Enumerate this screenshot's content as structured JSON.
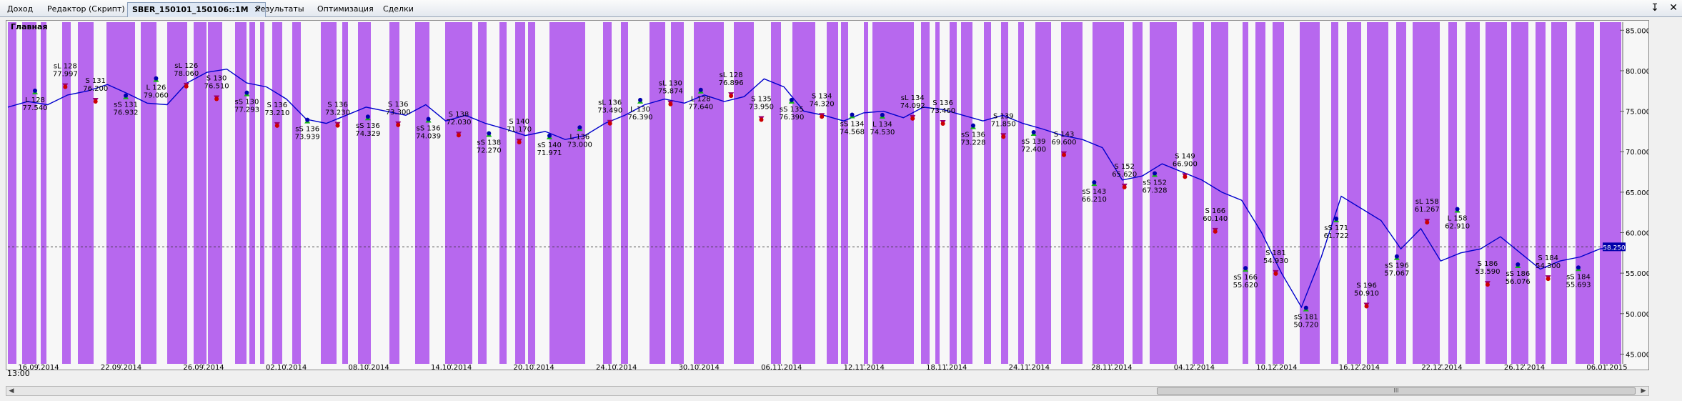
{
  "tabs": [
    {
      "label": "Доход",
      "active": false
    },
    {
      "label": "Редактор (Скрипт)",
      "active": false
    },
    {
      "label": "SBER_150101_150106::1M",
      "active": true
    },
    {
      "label": "Результаты",
      "active": false
    },
    {
      "label": "Оптимизация",
      "active": false
    },
    {
      "label": "Сделки",
      "active": false
    }
  ],
  "window_controls": {
    "pin": "↧",
    "close": "✕"
  },
  "panel_title": "Главная",
  "time_label": "13:00",
  "scrollbar": {
    "left": "◀",
    "right": "▶",
    "grip": "III"
  },
  "icons": [
    "close-icon",
    "pin-icon",
    "arrow-left-icon",
    "arrow-right-icon"
  ],
  "colors": {
    "band": "#b768ee",
    "price_line": "#0000cc",
    "trade_line": "#c80000",
    "buy_marker": "#19b419",
    "sell_marker": "#9a0070",
    "last_price_box": "#0000aa"
  },
  "chart_data": {
    "type": "line",
    "ylim": [
      43.8,
      86.0
    ],
    "yticks": [
      "85.000",
      "80.000",
      "75.000",
      "70.000",
      "65.000",
      "60.000",
      "55.000",
      "50.000",
      "45.000"
    ],
    "x_labels": [
      "16.09.2014",
      "22.09.2014",
      "26.09.2014",
      "02.10.2014",
      "08.10.2014",
      "14.10.2014",
      "20.10.2014",
      "24.10.2014",
      "30.10.2014",
      "06.11.2014",
      "12.11.2014",
      "18.11.2014",
      "24.11.2014",
      "28.11.2014",
      "04.12.2014",
      "10.12.2014",
      "16.12.2014",
      "22.12.2014",
      "26.12.2014",
      "06.01.2015"
    ],
    "last_price": "58.250",
    "series": [
      {
        "values": [
          75.5,
          76.2,
          75.8,
          77.0,
          77.5,
          78.3,
          77.2,
          76.0,
          75.8,
          78.5,
          79.8,
          80.2,
          78.5,
          78.0,
          76.5,
          74.0,
          73.5,
          74.5,
          75.5,
          75.0,
          74.5,
          75.8,
          73.8,
          74.5,
          73.5,
          72.8,
          72.0,
          72.5,
          71.5,
          72.0,
          73.5,
          74.5,
          75.8,
          76.5,
          76.0,
          77.0,
          76.2,
          76.8,
          79.0,
          78.0,
          75.0,
          74.5,
          73.8,
          74.8,
          75.0,
          74.2,
          75.5,
          75.2,
          74.5,
          73.8,
          74.5,
          73.5,
          72.8,
          72.0,
          71.5,
          70.5,
          66.5,
          67.0,
          68.5,
          67.5,
          66.5,
          65.0,
          64.0,
          60.0,
          55.0,
          50.8,
          57.0,
          64.5,
          63.0,
          61.5,
          58.0,
          60.5,
          56.5,
          57.5,
          58.0,
          59.5,
          57.5,
          55.5,
          56.5,
          57.0,
          58.0,
          58.25
        ]
      }
    ],
    "trades": [
      {
        "id": "L 128",
        "text": "L 128\n77.540",
        "dir": "buy",
        "pos": "below",
        "price": 77.54
      },
      {
        "id": "sL 128",
        "text": "sL 128\n77.997",
        "dir": "sell",
        "pos": "above",
        "price": 77.997
      },
      {
        "id": "S 131",
        "text": "S 131\n76.200",
        "dir": "sell",
        "pos": "above",
        "price": 76.2
      },
      {
        "id": "sS 131",
        "text": "sS 131\n76.932",
        "dir": "buy",
        "pos": "below",
        "price": 76.932
      },
      {
        "id": "L 126",
        "text": "L 126\n79.060",
        "dir": "buy",
        "pos": "below",
        "price": 79.06
      },
      {
        "id": "sL 126",
        "text": "sL 126\n78.060",
        "dir": "sell",
        "pos": "above",
        "price": 78.06
      },
      {
        "id": "S 130",
        "text": "S 130\n76.510",
        "dir": "sell",
        "pos": "above",
        "price": 76.51
      },
      {
        "id": "sS 130",
        "text": "sS 130\n77.293",
        "dir": "buy",
        "pos": "below",
        "price": 77.293
      },
      {
        "id": "S 136a",
        "text": "S 136\n73.210",
        "dir": "sell",
        "pos": "above",
        "price": 73.21
      },
      {
        "id": "sS 136a",
        "text": "sS 136\n73.939",
        "dir": "buy",
        "pos": "below",
        "price": 73.939
      },
      {
        "id": "S 136b",
        "text": "S 136\n73.230",
        "dir": "sell",
        "pos": "above",
        "price": 73.23
      },
      {
        "id": "sS 136b",
        "text": "sS 136\n74.329",
        "dir": "buy",
        "pos": "below",
        "price": 74.329
      },
      {
        "id": "S 136c",
        "text": "S 136\n73.300",
        "dir": "sell",
        "pos": "above",
        "price": 73.3
      },
      {
        "id": "sS 136c",
        "text": "sS 136\n74.039",
        "dir": "buy",
        "pos": "below",
        "price": 74.039
      },
      {
        "id": "S 138",
        "text": "S 138\n72.030",
        "dir": "sell",
        "pos": "above",
        "price": 72.03
      },
      {
        "id": "sS 138",
        "text": "sS 138\n72.270",
        "dir": "buy",
        "pos": "below",
        "price": 72.27
      },
      {
        "id": "S 140",
        "text": "S 140\n71.170",
        "dir": "sell",
        "pos": "above",
        "price": 71.17
      },
      {
        "id": "sS 140",
        "text": "sS 140\n71.971",
        "dir": "buy",
        "pos": "below",
        "price": 71.971
      },
      {
        "id": "L 136",
        "text": "L 136\n73.000",
        "dir": "buy",
        "pos": "below",
        "price": 73.0
      },
      {
        "id": "sL 136",
        "text": "sL 136\n73.490",
        "dir": "sell",
        "pos": "above",
        "price": 73.49
      },
      {
        "id": "L 130",
        "text": "L 130\n76.390",
        "dir": "buy",
        "pos": "below",
        "price": 76.39
      },
      {
        "id": "sL 130",
        "text": "sL 130\n75.874",
        "dir": "sell",
        "pos": "above",
        "price": 75.874
      },
      {
        "id": "L 128b",
        "text": "L 128\n77.640",
        "dir": "buy",
        "pos": "below",
        "price": 77.64
      },
      {
        "id": "sL 128b",
        "text": "sL 128\n76.896",
        "dir": "sell",
        "pos": "above",
        "price": 76.896
      },
      {
        "id": "S 135",
        "text": "S 135\n73.950",
        "dir": "sell",
        "pos": "above",
        "price": 73.95
      },
      {
        "id": "sS 135",
        "text": "sS 135\n76.390",
        "dir": "buy",
        "pos": "below",
        "price": 76.39
      },
      {
        "id": "S 134",
        "text": "S 134\n74.320",
        "dir": "sell",
        "pos": "above",
        "price": 74.32
      },
      {
        "id": "sS 134",
        "text": "sS 134\n74.568",
        "dir": "buy",
        "pos": "below",
        "price": 74.568
      },
      {
        "id": "L 134",
        "text": "L 134\n74.530",
        "dir": "buy",
        "pos": "below",
        "price": 74.53
      },
      {
        "id": "sL 134",
        "text": "sL 134\n74.092",
        "dir": "sell",
        "pos": "above",
        "price": 74.092
      },
      {
        "id": "S 136d",
        "text": "S 136\n73.460",
        "dir": "sell",
        "pos": "above",
        "price": 73.46
      },
      {
        "id": "sS 136d",
        "text": "sS 136\n73.228",
        "dir": "buy",
        "pos": "below",
        "price": 73.228
      },
      {
        "id": "S 139",
        "text": "S 139\n71.850",
        "dir": "sell",
        "pos": "above",
        "price": 71.85
      },
      {
        "id": "sS 139",
        "text": "sS 139\n72.400",
        "dir": "buy",
        "pos": "below",
        "price": 72.4
      },
      {
        "id": "S 143",
        "text": "S 143\n69.600",
        "dir": "sell",
        "pos": "above",
        "price": 69.6
      },
      {
        "id": "sS 143",
        "text": "sS 143\n66.210",
        "dir": "buy",
        "pos": "below",
        "price": 66.21
      },
      {
        "id": "S 152",
        "text": "S 152\n65.620",
        "dir": "sell",
        "pos": "above",
        "price": 65.62
      },
      {
        "id": "sS 152",
        "text": "sS 152\n67.328",
        "dir": "buy",
        "pos": "below",
        "price": 67.328
      },
      {
        "id": "S 149",
        "text": "S 149\n66.900",
        "dir": "sell",
        "pos": "above",
        "price": 66.9
      },
      {
        "id": "S 166",
        "text": "S 166\n60.140",
        "dir": "sell",
        "pos": "above",
        "price": 60.14
      },
      {
        "id": "sS 166",
        "text": "sS 166\n55.620",
        "dir": "buy",
        "pos": "below",
        "price": 55.62
      },
      {
        "id": "S 181",
        "text": "S 181\n54.930",
        "dir": "sell",
        "pos": "above",
        "price": 54.93
      },
      {
        "id": "sS 181",
        "text": "sS 181\n50.720",
        "dir": "buy",
        "pos": "below",
        "price": 50.72
      },
      {
        "id": "sS 171",
        "text": "sS 171\n61.722",
        "dir": "buy",
        "pos": "below",
        "price": 61.722
      },
      {
        "id": "S 196",
        "text": "S 196\n50.910",
        "dir": "sell",
        "pos": "above",
        "price": 50.91
      },
      {
        "id": "sS 196",
        "text": "sS 196\n57.067",
        "dir": "buy",
        "pos": "below",
        "price": 57.067
      },
      {
        "id": "sL 158",
        "text": "sL 158\n61.267",
        "dir": "sell",
        "pos": "above",
        "price": 61.267
      },
      {
        "id": "L 158",
        "text": "L 158\n62.910",
        "dir": "buy",
        "pos": "below",
        "price": 62.91
      },
      {
        "id": "S 186",
        "text": "S 186\n53.590",
        "dir": "sell",
        "pos": "above",
        "price": 53.59
      },
      {
        "id": "sS 186",
        "text": "sS 186\n56.076",
        "dir": "buy",
        "pos": "below",
        "price": 56.076
      },
      {
        "id": "S 184",
        "text": "S 184\n54.300",
        "dir": "sell",
        "pos": "above",
        "price": 54.3
      },
      {
        "id": "sS 184",
        "text": "sS 184\n55.693",
        "dir": "buy",
        "pos": "below",
        "price": 55.693
      }
    ]
  }
}
